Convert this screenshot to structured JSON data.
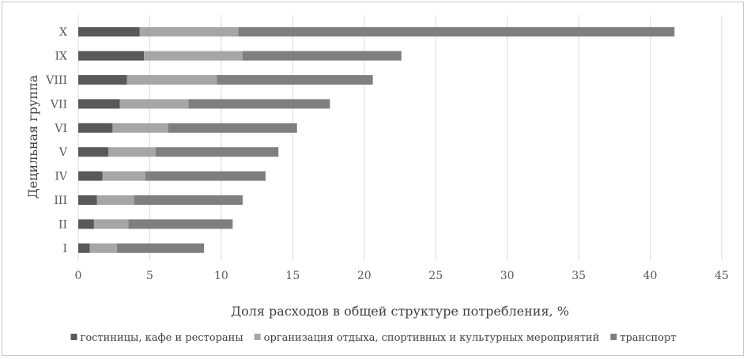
{
  "chart_data": {
    "type": "bar",
    "orientation": "horizontal",
    "stacked": true,
    "title": "",
    "xlabel": "Доля расходов в общей структуре  потребления, %",
    "ylabel": "Децильная группа",
    "categories": [
      "I",
      "II",
      "III",
      "IV",
      "V",
      "VI",
      "VII",
      "VIII",
      "IX",
      "X"
    ],
    "xlim": [
      0,
      45
    ],
    "xticks": [
      0,
      5,
      10,
      15,
      20,
      25,
      30,
      35,
      40,
      45
    ],
    "grid": "vertical",
    "legend_position": "bottom",
    "series": [
      {
        "name": "гостиницы, кафе и рестораны",
        "color": "#595959",
        "values": [
          0.8,
          1.1,
          1.3,
          1.7,
          2.1,
          2.4,
          2.9,
          3.4,
          4.6,
          4.3
        ]
      },
      {
        "name": "организация отдыха, спортивных и культурных мероприятий",
        "color": "#a6a6a6",
        "values": [
          1.9,
          2.4,
          2.6,
          3.0,
          3.3,
          3.9,
          4.8,
          6.3,
          6.9,
          6.9
        ]
      },
      {
        "name": "транспорт",
        "color": "#7f7f7f",
        "values": [
          6.1,
          7.3,
          7.6,
          8.4,
          8.6,
          9.0,
          9.9,
          10.9,
          11.1,
          30.5
        ]
      }
    ]
  }
}
